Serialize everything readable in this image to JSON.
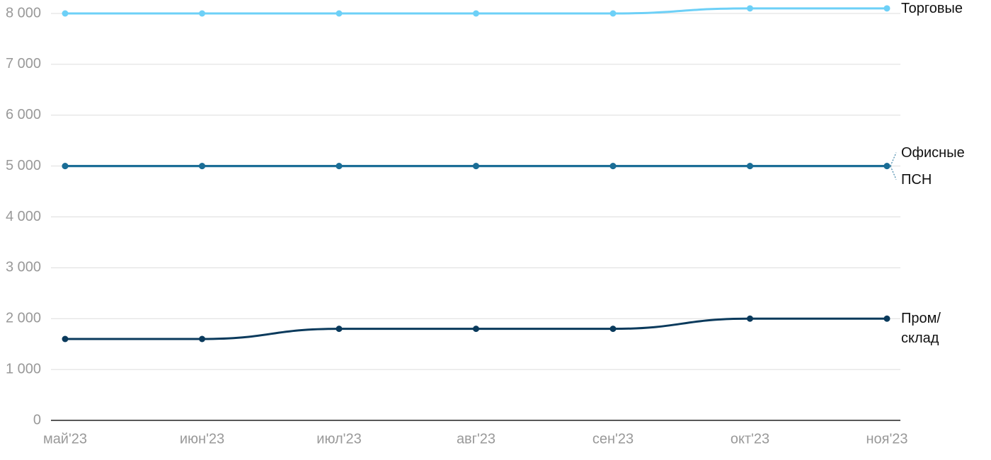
{
  "chart_data": {
    "type": "line",
    "categories": [
      "май'23",
      "июн'23",
      "июл'23",
      "авг'23",
      "сен'23",
      "окт'23",
      "ноя'23"
    ],
    "series": [
      {
        "name": "Торговые",
        "color": "#6dd0f7",
        "values": [
          8000,
          8000,
          8000,
          8000,
          8000,
          8100,
          8100
        ]
      },
      {
        "name": "Офисные",
        "color": "#1a6d96",
        "values": [
          5000,
          5000,
          5000,
          5000,
          5000,
          5000,
          5000
        ]
      },
      {
        "name": "ПСН",
        "color": "#1a6d96",
        "values": [
          5000,
          5000,
          5000,
          5000,
          5000,
          5000,
          5000
        ]
      },
      {
        "name": "Пром/ склад",
        "color": "#0a3a5c",
        "values": [
          1600,
          1600,
          1800,
          1800,
          1800,
          2000,
          2000
        ]
      }
    ],
    "ylim": [
      0,
      8000
    ],
    "yticks": [
      {
        "value": 0,
        "label": "0"
      },
      {
        "value": 1000,
        "label": "1 000"
      },
      {
        "value": 2000,
        "label": "2 000"
      },
      {
        "value": 3000,
        "label": "3 000"
      },
      {
        "value": 4000,
        "label": "4 000"
      },
      {
        "value": 5000,
        "label": "5 000"
      },
      {
        "value": 6000,
        "label": "6 000"
      },
      {
        "value": 7000,
        "label": "7 000"
      },
      {
        "value": 8000,
        "label": "8 000"
      }
    ],
    "grid": true
  }
}
